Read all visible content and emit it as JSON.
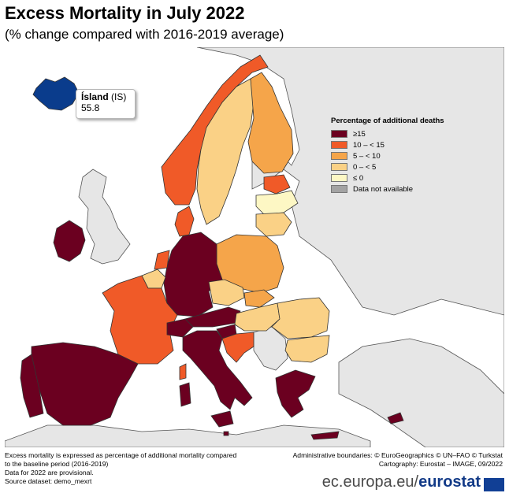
{
  "header": {
    "title": "Excess Mortality in July 2022",
    "subtitle": "(% change compared with 2016-2019 average)"
  },
  "callout": {
    "name": "Ísland",
    "code": "(IS)",
    "value": "55.8"
  },
  "legend": {
    "title": "Percentage of additional deaths",
    "items": [
      {
        "label": "≥15",
        "color": "#6b0020"
      },
      {
        "label": "10 – < 15",
        "color": "#f05a28"
      },
      {
        "label": "5 – < 10",
        "color": "#f5a54a"
      },
      {
        "label": "0 – < 5",
        "color": "#fad186"
      },
      {
        "label": "≤ 0",
        "color": "#fdf7c4"
      },
      {
        "label": "Data not available",
        "color": "#a3a3a3"
      }
    ]
  },
  "colors": {
    "sea": "#ffffff",
    "non_eu_land": "#e6e6e6",
    "borders": "#333333",
    "iceland": "#0a3c8c"
  },
  "footer": {
    "left_lines": [
      "Excess mortality is expressed as percentage of additional mortality compared",
      "to the baseline period (2016-2019)",
      "Data for 2022 are provisional.",
      "Source dataset: demo_mexrt"
    ],
    "right_lines": [
      "Administrative boundaries: © EuroGeographics © UN–FAO © Turkstat",
      "Cartography: Eurostat – IMAGE, 09/2022"
    ],
    "brand_prefix": "ec.europa.eu/",
    "brand_name": "eurostat"
  }
}
